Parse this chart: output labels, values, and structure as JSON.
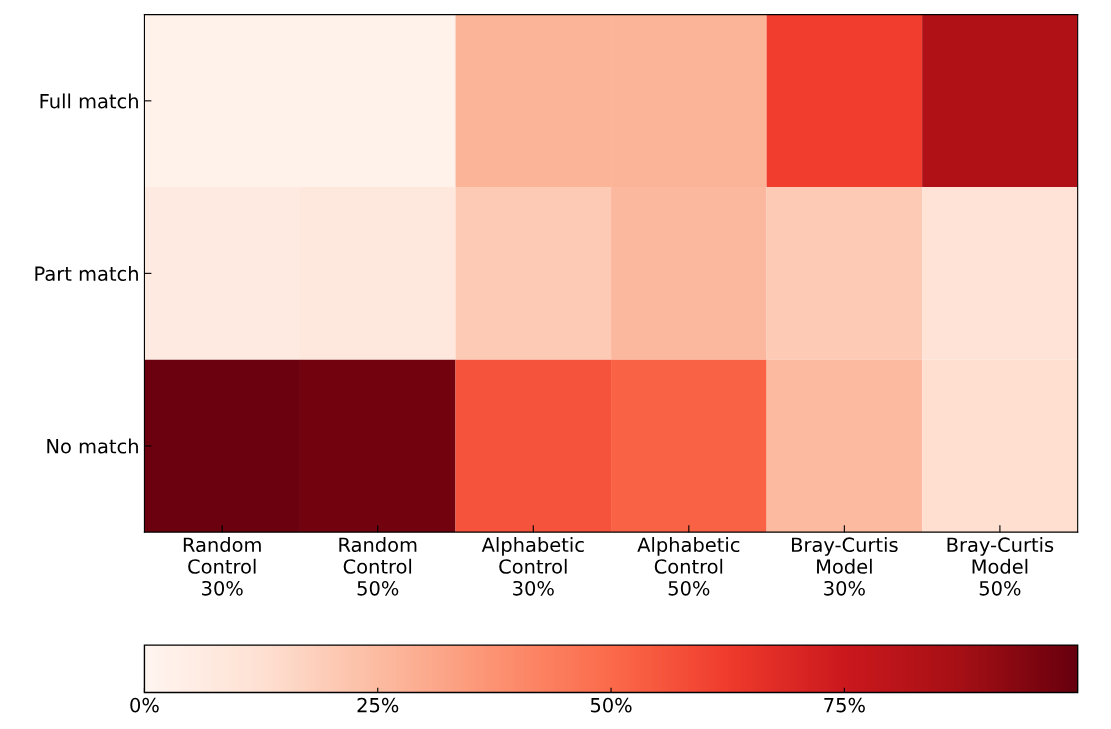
{
  "chart_data": {
    "type": "heatmap",
    "categories": [
      "Random\nControl\n30%",
      "Random\nControl\n50%",
      "Alphabetic\nControl\n30%",
      "Alphabetic\nControl\n50%",
      "Bray-Curtis\nModel\n30%",
      "Bray-Curtis\nModel\n50%"
    ],
    "y_categories": [
      "Full match",
      "Part match",
      "No match"
    ],
    "cells": [
      [
        2,
        2,
        27,
        27,
        62,
        84
      ],
      [
        7,
        8,
        20,
        26,
        20,
        11
      ],
      [
        99,
        98,
        56,
        52,
        25,
        13
      ]
    ],
    "clim": [
      0,
      100
    ],
    "cticks": [
      {
        "value": 0,
        "label": "0%"
      },
      {
        "value": 25,
        "label": "25%"
      },
      {
        "value": 50,
        "label": "50%"
      },
      {
        "value": 75,
        "label": "75%"
      }
    ]
  }
}
